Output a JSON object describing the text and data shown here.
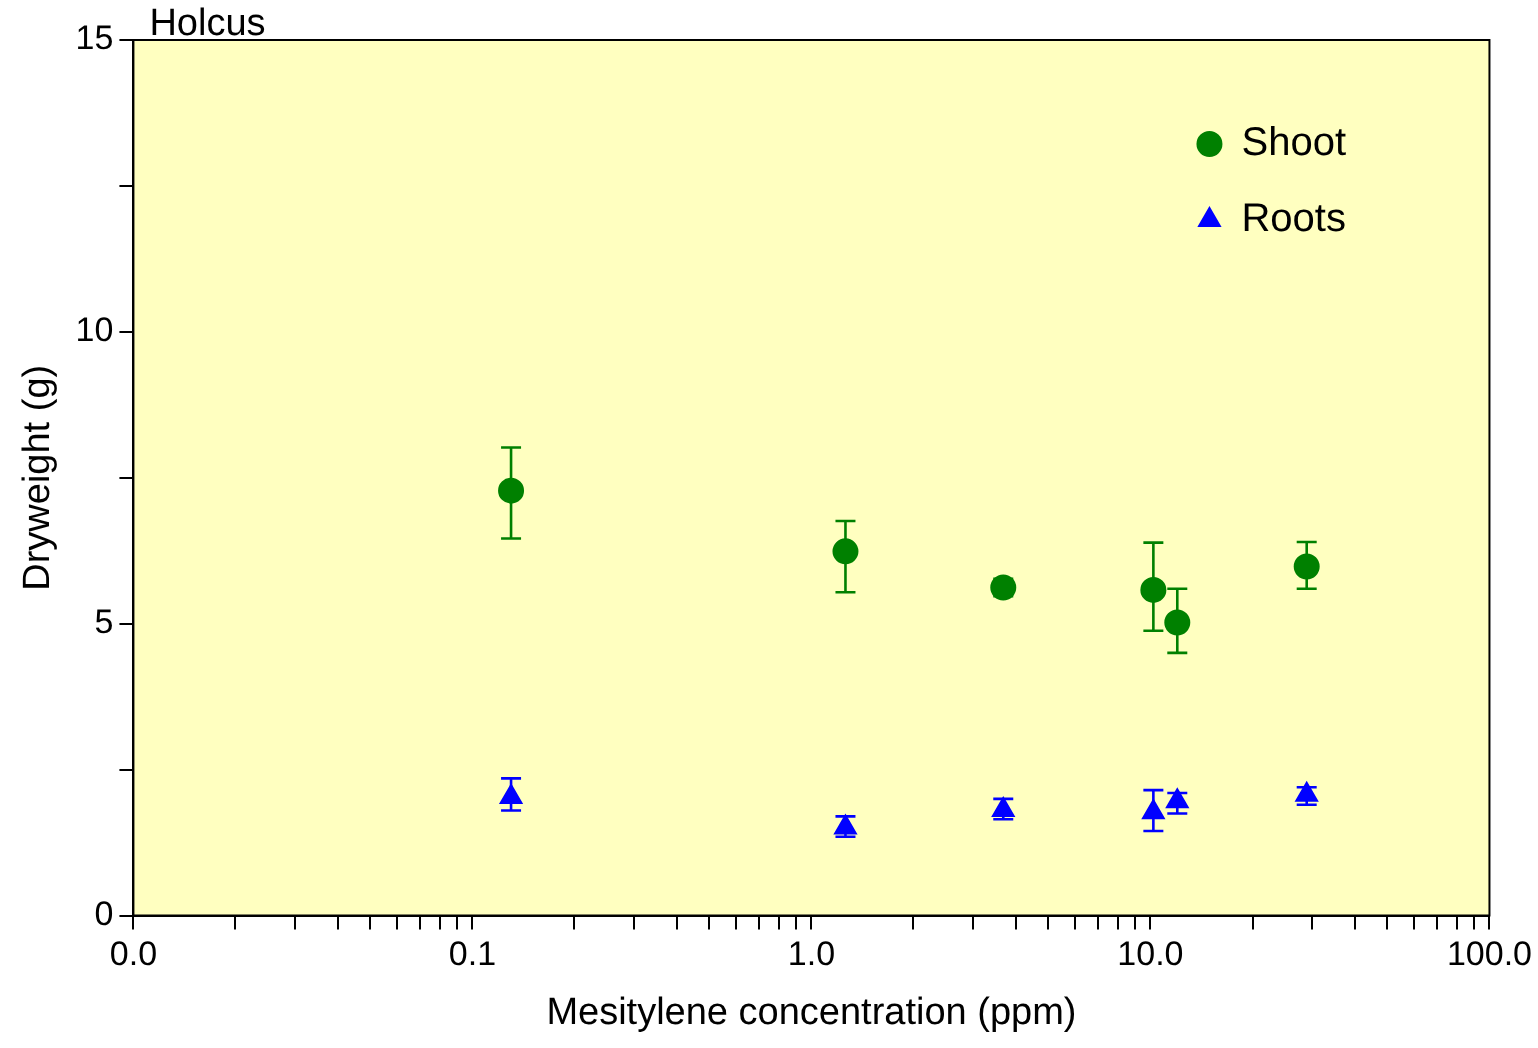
{
  "chart_data": {
    "type": "scatter",
    "xlabel": "Mesitylene concentration (ppm)",
    "ylabel": "Dryweight (g)",
    "annotations": [
      "Holcus"
    ],
    "log": "x",
    "grid": false,
    "legend": "top right",
    "xlim": [
      0.01,
      100
    ],
    "xticks": [
      {
        "value": 0.01,
        "label": "0.0"
      },
      {
        "value": 0.02,
        "label": null
      },
      {
        "value": 0.03,
        "label": null
      },
      {
        "value": 0.04,
        "label": null
      },
      {
        "value": 0.05,
        "label": null
      },
      {
        "value": 0.06,
        "label": null
      },
      {
        "value": 0.07,
        "label": null
      },
      {
        "value": 0.08,
        "label": null
      },
      {
        "value": 0.09,
        "label": null
      },
      {
        "value": 0.1,
        "label": "0.1"
      },
      {
        "value": 0.2,
        "label": null
      },
      {
        "value": 0.3,
        "label": null
      },
      {
        "value": 0.4,
        "label": null
      },
      {
        "value": 0.5,
        "label": null
      },
      {
        "value": 0.6,
        "label": null
      },
      {
        "value": 0.7,
        "label": null
      },
      {
        "value": 0.8,
        "label": null
      },
      {
        "value": 0.9,
        "label": null
      },
      {
        "value": 1,
        "label": "1.0"
      },
      {
        "value": 2,
        "label": null
      },
      {
        "value": 3,
        "label": null
      },
      {
        "value": 4,
        "label": null
      },
      {
        "value": 5,
        "label": null
      },
      {
        "value": 6,
        "label": null
      },
      {
        "value": 7,
        "label": null
      },
      {
        "value": 8,
        "label": null
      },
      {
        "value": 9,
        "label": null
      },
      {
        "value": 10,
        "label": "10.0"
      },
      {
        "value": 20,
        "label": null
      },
      {
        "value": 30,
        "label": null
      },
      {
        "value": 40,
        "label": null
      },
      {
        "value": 50,
        "label": null
      },
      {
        "value": 60,
        "label": null
      },
      {
        "value": 70,
        "label": null
      },
      {
        "value": 80,
        "label": null
      },
      {
        "value": 90,
        "label": null
      },
      {
        "value": 100,
        "label": "100.0"
      }
    ],
    "ylim": [
      0,
      15
    ],
    "yticks": [
      0,
      {
        "value": 2.5,
        "label": null
      },
      5,
      {
        "value": 7.5,
        "label": null
      },
      10,
      {
        "value": 12.5,
        "label": null
      },
      15
    ],
    "x": [
      0.13,
      1.26,
      3.68,
      10.2,
      12.0,
      28.9
    ],
    "series": [
      {
        "name": "Shoot",
        "color": "#008000",
        "marker": "circle",
        "values": [
          7.28,
          6.24,
          5.62,
          5.58,
          5.02,
          5.98
        ],
        "errors": [
          [
            6.46,
            8.02
          ],
          [
            5.54,
            6.76
          ],
          [
            5.47,
            5.77
          ],
          [
            4.88,
            6.39
          ],
          [
            4.5,
            5.6
          ],
          [
            5.6,
            6.4
          ]
        ]
      },
      {
        "name": "Roots",
        "color": "#0000ff",
        "marker": "triangle",
        "values": [
          2.03,
          1.51,
          1.81,
          1.77,
          1.96,
          2.07
        ],
        "errors": [
          [
            1.8,
            2.35
          ],
          [
            1.35,
            1.7
          ],
          [
            1.65,
            2.0
          ],
          [
            1.45,
            2.15
          ],
          [
            1.75,
            2.1
          ],
          [
            1.9,
            2.2
          ]
        ]
      }
    ]
  }
}
